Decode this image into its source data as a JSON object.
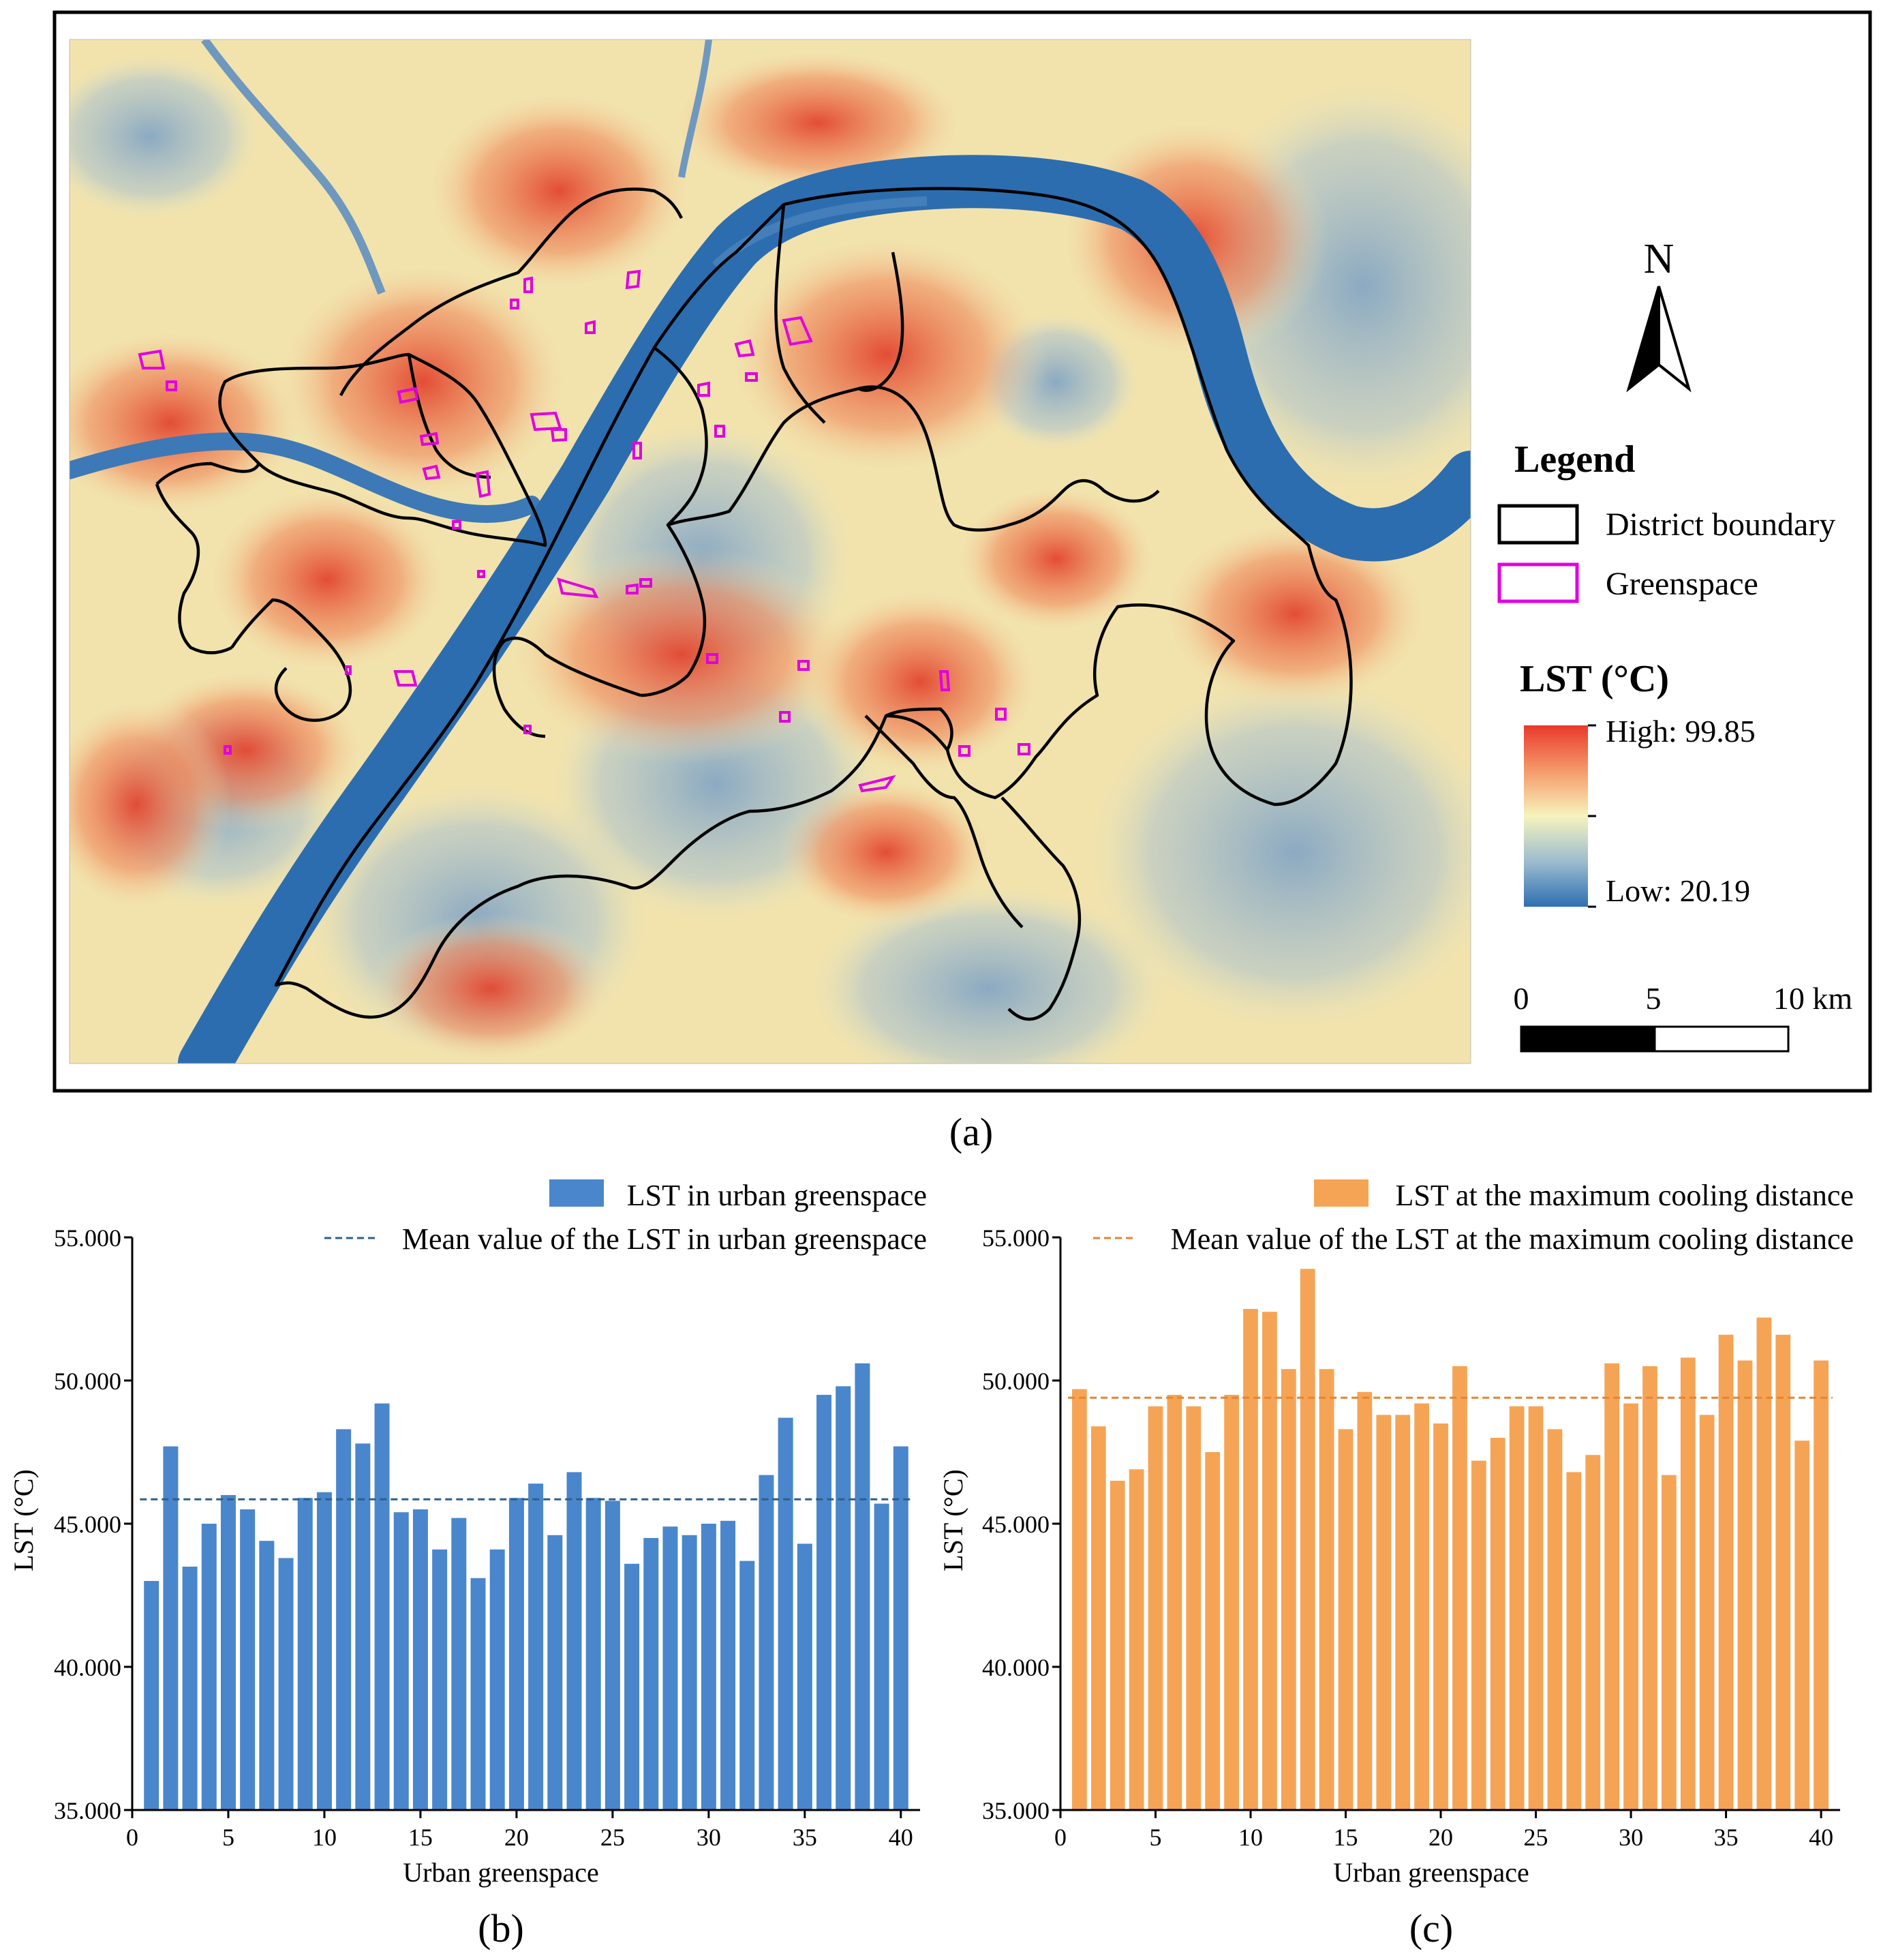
{
  "map": {
    "panel_label": "(a)",
    "north_label": "N",
    "legend_title": "Legend",
    "legend_items": [
      {
        "label": "District boundary",
        "stroke": "#000000"
      },
      {
        "label": "Greenspace",
        "stroke": "#e000e0"
      }
    ],
    "lst_title": "LST (°C)",
    "lst_high": "High: 99.85",
    "lst_low": "Low: 20.19",
    "scalebar_labels": [
      "0",
      "5",
      "10 km"
    ],
    "colors": {
      "high": "#e8392c",
      "mid": "#f4f1b4",
      "low": "#2e6fb1",
      "river": "#2a6db0"
    }
  },
  "chart_data": [
    {
      "type": "bar",
      "panel_label": "(b)",
      "legend_bar": "LST in urban greenspace",
      "legend_line": "Mean value of the LST in urban greenspace",
      "xlabel": "Urban greenspace",
      "ylabel": "LST (°C)",
      "ylim": [
        35,
        55
      ],
      "xlim": [
        0,
        41
      ],
      "yticks": [
        "35.000",
        "40.000",
        "45.000",
        "50.000",
        "55.000"
      ],
      "xticks": [
        "0",
        "5",
        "10",
        "15",
        "20",
        "25",
        "30",
        "35",
        "40"
      ],
      "color": "#4a86cc",
      "mean_color": "#2e5f8a",
      "mean": 45.85,
      "values": [
        43.0,
        47.7,
        43.5,
        45.0,
        46.0,
        45.5,
        44.4,
        43.8,
        45.9,
        46.1,
        48.3,
        47.8,
        49.2,
        45.4,
        45.5,
        44.1,
        45.2,
        43.1,
        44.1,
        45.9,
        46.4,
        44.6,
        46.8,
        45.9,
        45.8,
        43.6,
        44.5,
        44.9,
        44.6,
        45.0,
        45.1,
        43.7,
        46.7,
        48.7,
        44.3,
        49.5,
        49.8,
        50.6,
        45.7,
        47.7
      ]
    },
    {
      "type": "bar",
      "panel_label": "(c)",
      "legend_bar": "LST at the maximum cooling distance",
      "legend_line": "Mean value of the LST at the maximum cooling distance",
      "xlabel": "Urban greenspace",
      "ylabel": "LST (°C)",
      "ylim": [
        35,
        55
      ],
      "xlim": [
        0,
        41
      ],
      "yticks": [
        "35.000",
        "40.000",
        "45.000",
        "50.000",
        "55.000"
      ],
      "xticks": [
        "0",
        "5",
        "10",
        "15",
        "20",
        "25",
        "30",
        "35",
        "40"
      ],
      "color": "#f5a456",
      "mean_color": "#e8832e",
      "mean": 49.4,
      "values": [
        49.7,
        48.4,
        46.5,
        46.9,
        49.1,
        49.5,
        49.1,
        47.5,
        49.5,
        52.5,
        52.4,
        50.4,
        53.9,
        50.4,
        48.3,
        49.6,
        48.8,
        48.8,
        49.2,
        48.5,
        50.5,
        47.2,
        48.0,
        49.1,
        49.1,
        48.3,
        46.8,
        47.4,
        50.6,
        49.2,
        50.5,
        46.7,
        50.8,
        48.8,
        51.6,
        50.7,
        52.2,
        51.6,
        47.9,
        50.7
      ]
    }
  ]
}
